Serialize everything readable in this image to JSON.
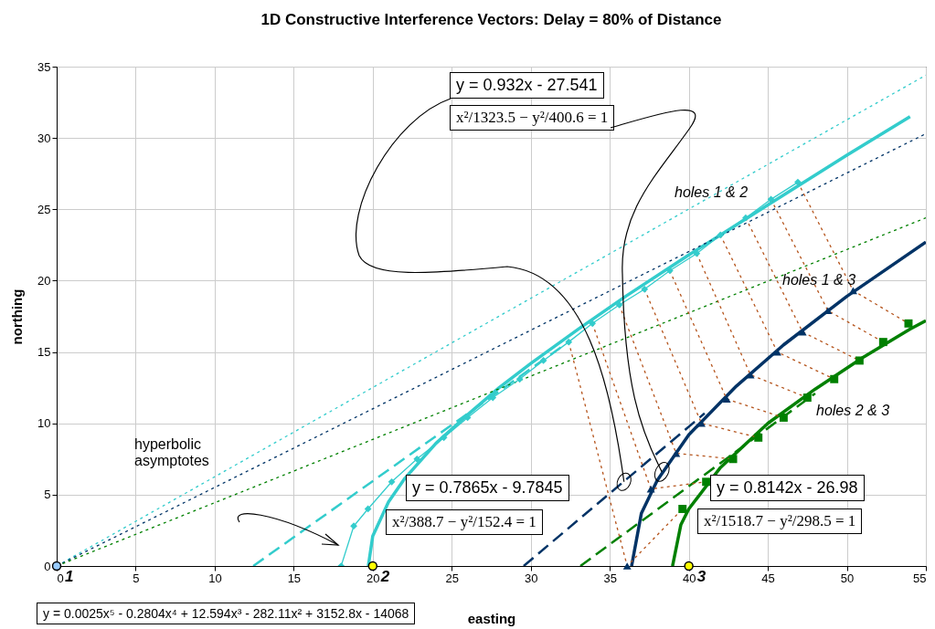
{
  "chart_data": {
    "type": "line",
    "title": "1D Constructive Interference Vectors:  Delay = 80% of Distance",
    "xlabel": "easting",
    "ylabel": "northing",
    "xlim": [
      0,
      55
    ],
    "xticks": [
      0,
      5,
      10,
      15,
      20,
      25,
      30,
      35,
      40,
      45,
      50,
      55
    ],
    "ylim": [
      0,
      35
    ],
    "yticks": [
      0,
      5,
      10,
      15,
      20,
      25,
      30,
      35
    ],
    "grid": true,
    "annotations": [
      {
        "text": "y = 0.932x - 27.541",
        "x": 35.9,
        "y": 5.9
      },
      {
        "text": "x²/1323.5 − y²/400.6 = 1",
        "x": 38.3,
        "y": 6.6
      },
      "y = 0.7865x - 9.7845",
      "x²/388.7 − y²/152.4 = 1",
      "y = 0.8142x - 26.98",
      "x²/1518.7 − y²/298.5 = 1",
      "y = 0.0025x⁵ - 0.2804x⁴ + 12.594x³ - 282.11x² + 3152.8x - 14068",
      "hyperbolic asymptotes",
      {
        "text": "1",
        "x": 0,
        "y": 0
      },
      {
        "text": "2",
        "x": 20,
        "y": 0
      },
      {
        "text": "3",
        "x": 40,
        "y": 0
      }
    ],
    "series": [
      {
        "name": "holes 1 & 2",
        "color": "#33cccc",
        "marker": "diamond",
        "x": [
          18.0,
          18.8,
          19.7,
          21.2,
          22.8,
          24.5,
          26.0,
          27.6,
          29.3,
          30.8,
          32.4,
          33.9,
          35.6,
          37.2,
          38.8,
          40.5,
          42.0,
          43.6,
          45.2,
          46.9
        ],
        "values": [
          0,
          2.8,
          4.0,
          5.9,
          7.5,
          9.0,
          10.4,
          11.8,
          13.1,
          14.4,
          15.7,
          17.0,
          18.3,
          19.4,
          20.7,
          21.9,
          23.2,
          24.4,
          25.7,
          26.9
        ]
      },
      {
        "color": "#33cccc",
        "x": [
          19.72,
          20,
          21,
          22,
          24,
          26,
          28,
          30,
          33,
          36,
          40,
          45,
          50,
          54
        ],
        "values": [
          0,
          2.1,
          4.5,
          6.1,
          8.6,
          10.6,
          12.5,
          14.2,
          16.6,
          18.9,
          21.8,
          25.3,
          28.8,
          31.5
        ]
      },
      {
        "color": "#33cccc",
        "line_style": "dashed",
        "x": [
          12.44,
          32
        ],
        "values": [
          0,
          15.4
        ]
      },
      {
        "color": "#33cccc",
        "line_style": "dotted",
        "x": [
          0,
          55
        ],
        "values": [
          0,
          34.4
        ]
      },
      {
        "name": "holes 1 & 3",
        "type": "scatter",
        "color": "#003366",
        "marker": "triangle",
        "x": [
          36.1,
          37.6,
          39.2,
          40.8,
          42.4,
          43.9,
          45.6,
          47.2,
          48.8,
          50.4
        ],
        "values": [
          0,
          5.4,
          7.9,
          10.0,
          11.7,
          13.4,
          15.0,
          16.4,
          17.9,
          19.3
        ]
      },
      {
        "color": "#003366",
        "x": [
          36.38,
          37,
          38,
          40,
          43,
          46,
          50,
          55
        ],
        "values": [
          0,
          3.7,
          6.0,
          9.2,
          12.6,
          15.5,
          18.9,
          22.7
        ]
      },
      {
        "color": "#003366",
        "line_style": "dashed",
        "x": [
          29.55,
          41
        ],
        "values": [
          0,
          10.7
        ]
      },
      {
        "color": "#003366",
        "line_style": "dotted",
        "x": [
          0,
          55
        ],
        "values": [
          0,
          30.3
        ]
      },
      {
        "name": "holes 2 & 3",
        "type": "scatter",
        "color": "#008000",
        "marker": "square",
        "x": [
          39.6,
          41.1,
          42.8,
          44.4,
          46.0,
          47.5,
          49.2,
          50.8,
          52.3,
          53.9
        ],
        "values": [
          4.0,
          5.9,
          7.5,
          9.0,
          10.4,
          11.8,
          13.1,
          14.4,
          15.7,
          17.0
        ]
      },
      {
        "color": "#008000",
        "x": [
          38.97,
          39.5,
          40,
          42,
          45,
          48,
          51,
          54,
          55
        ],
        "values": [
          0,
          2.9,
          4.0,
          6.9,
          10.0,
          12.4,
          14.6,
          16.6,
          17.2
        ]
      },
      {
        "color": "#008000",
        "line_style": "dashed",
        "x": [
          33.14,
          48
        ],
        "values": [
          0,
          12.1
        ]
      },
      {
        "color": "#008000",
        "line_style": "dotted",
        "x": [
          0,
          55
        ],
        "values": [
          0,
          24.4
        ]
      },
      {
        "color": "#b5541c",
        "line_style": "dotted",
        "x": [
          32.4,
          36.1,
          39.6,
          null,
          33.9,
          37.6,
          41.1,
          null,
          35.6,
          39.2,
          42.8,
          null,
          37.2,
          40.8,
          44.4,
          null,
          38.8,
          42.4,
          46.0,
          null,
          40.5,
          43.9,
          47.5,
          null,
          42.0,
          45.6,
          49.2,
          null,
          43.6,
          47.2,
          50.8,
          null,
          45.2,
          48.8,
          52.3,
          null,
          46.9,
          50.4,
          53.9
        ],
        "values": [
          15.7,
          0,
          4.0,
          null,
          17.0,
          5.4,
          5.9,
          null,
          18.3,
          7.9,
          7.5,
          null,
          19.4,
          10.0,
          9.0,
          null,
          20.7,
          11.7,
          10.4,
          null,
          21.9,
          13.4,
          11.8,
          null,
          23.2,
          15.0,
          13.1,
          null,
          24.4,
          16.4,
          14.4,
          null,
          25.7,
          17.9,
          15.7,
          null,
          26.9,
          19.3,
          17.0
        ]
      },
      {
        "type": "scatter",
        "colors": [
          "#99ccff",
          "#ffff00",
          "#ffff00"
        ],
        "marker": "circle",
        "x": [
          0,
          20,
          40
        ],
        "values": [
          0,
          0,
          0
        ]
      }
    ]
  }
}
